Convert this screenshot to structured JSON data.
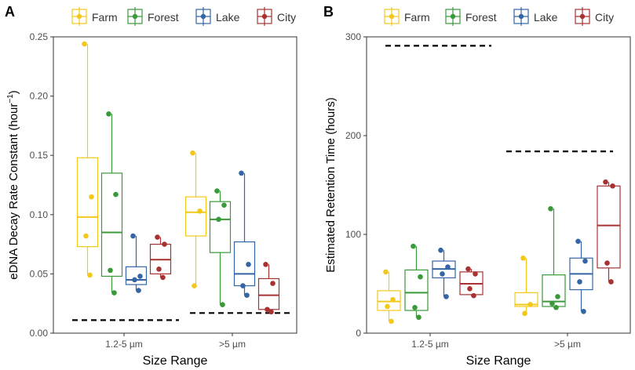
{
  "panel_labels": [
    "A",
    "B"
  ],
  "legend": {
    "entries": [
      "Farm",
      "Forest",
      "Lake",
      "City"
    ],
    "colors": [
      "#F2C81B",
      "#3A9A3A",
      "#3465A4",
      "#A83232"
    ]
  },
  "chart_data": [
    {
      "type": "boxplot",
      "panel": "A",
      "xlabel": "Size Range",
      "ylabel_main": "eDNA Decay Rate Constant (hour",
      "ylabel_sup": "−1",
      "ylabel_end": ")",
      "categories": [
        "1.2-5 µm",
        ">5 µm"
      ],
      "ylim": [
        0,
        0.25
      ],
      "yticks": [
        0.0,
        0.05,
        0.1,
        0.15,
        0.2,
        0.25
      ],
      "ytick_labels": [
        "0.00",
        "0.05",
        "0.10",
        "0.15",
        "0.20",
        "0.25"
      ],
      "series": [
        {
          "name": "Farm",
          "color": "#F2C81B",
          "boxes": [
            {
              "q1": 0.073,
              "median": 0.098,
              "q3": 0.148,
              "min": 0.049,
              "max": 0.244,
              "points": [
                0.244,
                0.115,
                0.082,
                0.049
              ]
            },
            {
              "q1": 0.082,
              "median": 0.102,
              "q3": 0.115,
              "min": 0.04,
              "max": 0.152,
              "points": [
                0.152,
                0.103,
                0.04
              ]
            }
          ]
        },
        {
          "name": "Forest",
          "color": "#3A9A3A",
          "boxes": [
            {
              "q1": 0.048,
              "median": 0.085,
              "q3": 0.135,
              "min": 0.034,
              "max": 0.185,
              "points": [
                0.185,
                0.117,
                0.053,
                0.034
              ]
            },
            {
              "q1": 0.068,
              "median": 0.096,
              "q3": 0.111,
              "min": 0.024,
              "max": 0.12,
              "points": [
                0.12,
                0.108,
                0.096,
                0.024
              ]
            }
          ]
        },
        {
          "name": "Lake",
          "color": "#3465A4",
          "boxes": [
            {
              "q1": 0.041,
              "median": 0.045,
              "q3": 0.056,
              "min": 0.036,
              "max": 0.082,
              "points": [
                0.082,
                0.048,
                0.045,
                0.036
              ]
            },
            {
              "q1": 0.04,
              "median": 0.05,
              "q3": 0.077,
              "min": 0.032,
              "max": 0.135,
              "points": [
                0.135,
                0.058,
                0.04,
                0.032
              ]
            }
          ]
        },
        {
          "name": "City",
          "color": "#A83232",
          "boxes": [
            {
              "q1": 0.05,
              "median": 0.062,
              "q3": 0.075,
              "min": 0.047,
              "max": 0.081,
              "points": [
                0.081,
                0.075,
                0.054,
                0.047
              ]
            },
            {
              "q1": 0.02,
              "median": 0.032,
              "q3": 0.046,
              "min": 0.018,
              "max": 0.058,
              "points": [
                0.058,
                0.042,
                0.02,
                0.018
              ]
            }
          ]
        }
      ],
      "reference_lines": [
        {
          "category_index": 0,
          "value": 0.011
        },
        {
          "category_index": 1,
          "value": 0.017
        }
      ]
    },
    {
      "type": "boxplot",
      "panel": "B",
      "xlabel": "Size Range",
      "ylabel_main": "Estimated Retention Time (hours)",
      "ylabel_sup": "",
      "ylabel_end": "",
      "categories": [
        "1.2-5 µm",
        ">5 µm"
      ],
      "ylim": [
        0,
        300
      ],
      "yticks": [
        0,
        100,
        200,
        300
      ],
      "ytick_labels": [
        "0",
        "100",
        "200",
        "300"
      ],
      "series": [
        {
          "name": "Farm",
          "color": "#F2C81B",
          "boxes": [
            {
              "q1": 23,
              "median": 32,
              "q3": 43,
              "min": 12,
              "max": 62,
              "points": [
                62,
                34,
                27,
                12
              ]
            },
            {
              "q1": 27,
              "median": 29,
              "q3": 41,
              "min": 20,
              "max": 76,
              "points": [
                76,
                29,
                20
              ]
            }
          ]
        },
        {
          "name": "Forest",
          "color": "#3A9A3A",
          "boxes": [
            {
              "q1": 23,
              "median": 41,
              "q3": 64,
              "min": 16,
              "max": 88,
              "points": [
                88,
                57,
                26,
                16
              ]
            },
            {
              "q1": 27,
              "median": 32,
              "q3": 59,
              "min": 26,
              "max": 126,
              "points": [
                126,
                37,
                30,
                26
              ]
            }
          ]
        },
        {
          "name": "Lake",
          "color": "#3465A4",
          "boxes": [
            {
              "q1": 56,
              "median": 65,
              "q3": 73,
              "min": 37,
              "max": 84,
              "points": [
                84,
                67,
                60,
                37
              ]
            },
            {
              "q1": 44,
              "median": 60,
              "q3": 76,
              "min": 22,
              "max": 93,
              "points": [
                93,
                73,
                52,
                22
              ]
            }
          ]
        },
        {
          "name": "City",
          "color": "#A83232",
          "boxes": [
            {
              "q1": 39,
              "median": 50,
              "q3": 62,
              "min": 38,
              "max": 65,
              "points": [
                65,
                60,
                45,
                38
              ]
            },
            {
              "q1": 66,
              "median": 109,
              "q3": 149,
              "min": 52,
              "max": 153,
              "points": [
                153,
                149,
                71,
                52
              ]
            }
          ]
        }
      ],
      "reference_lines": [
        {
          "category_index": 0,
          "value": 291
        },
        {
          "category_index": 1,
          "value": 184
        }
      ]
    }
  ]
}
